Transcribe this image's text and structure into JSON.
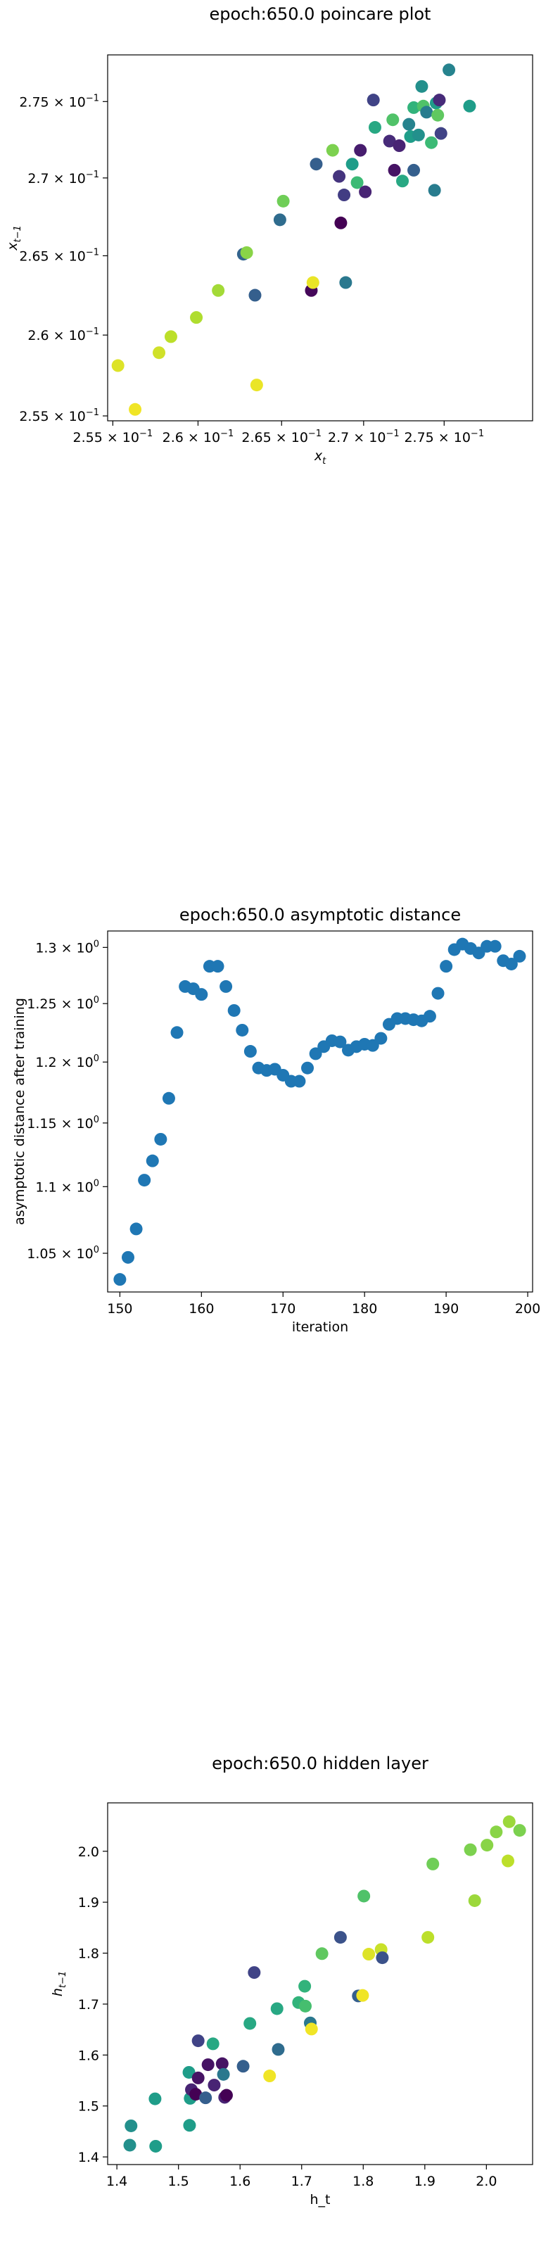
{
  "chart_data": [
    {
      "type": "scatter",
      "title": "epoch:650.0 poincare plot",
      "xlabel": "x_t",
      "ylabel": "x_{t-1}",
      "xscale": "log",
      "yscale": "log",
      "xlim": [
        0.2547,
        0.2806
      ],
      "ylim": [
        0.2547,
        0.2781
      ],
      "xticks": [
        0.255,
        0.26,
        0.265,
        0.27,
        0.275
      ],
      "yticks": [
        0.255,
        0.26,
        0.265,
        0.27,
        0.275
      ],
      "xtick_labels": [
        {
          "base": "2.55 × 10",
          "exp": "−1"
        },
        {
          "base": "2.6 × 10",
          "exp": "−1"
        },
        {
          "base": "2.65 × 10",
          "exp": "−1"
        },
        {
          "base": "2.7 × 10",
          "exp": "−1"
        },
        {
          "base": "2.75 × 10",
          "exp": "−1"
        }
      ],
      "ytick_labels": [
        {
          "base": "2.55 × 10",
          "exp": "−1"
        },
        {
          "base": "2.6 × 10",
          "exp": "−1"
        },
        {
          "base": "2.65 × 10",
          "exp": "−1"
        },
        {
          "base": "2.7 × 10",
          "exp": "−1"
        },
        {
          "base": "2.75 × 10",
          "exp": "−1"
        }
      ],
      "colormap": "viridis",
      "marker_color": "#1f77b4",
      "points": [
        {
          "x": 0.2553,
          "y": 0.2581,
          "c": 0.95
        },
        {
          "x": 0.2563,
          "y": 0.2554,
          "c": 0.98
        },
        {
          "x": 0.2577,
          "y": 0.2589,
          "c": 0.93
        },
        {
          "x": 0.2584,
          "y": 0.2599,
          "c": 0.9
        },
        {
          "x": 0.2599,
          "y": 0.2611,
          "c": 0.88
        },
        {
          "x": 0.2612,
          "y": 0.2628,
          "c": 0.86
        },
        {
          "x": 0.2627,
          "y": 0.2651,
          "c": 0.32
        },
        {
          "x": 0.2629,
          "y": 0.2652,
          "c": 0.82
        },
        {
          "x": 0.2634,
          "y": 0.2625,
          "c": 0.3
        },
        {
          "x": 0.2635,
          "y": 0.2569,
          "c": 0.97
        },
        {
          "x": 0.2649,
          "y": 0.2673,
          "c": 0.35
        },
        {
          "x": 0.2651,
          "y": 0.2685,
          "c": 0.78
        },
        {
          "x": 0.2668,
          "y": 0.2628,
          "c": 0.02
        },
        {
          "x": 0.2669,
          "y": 0.2633,
          "c": 0.97
        },
        {
          "x": 0.2671,
          "y": 0.2709,
          "c": 0.3
        },
        {
          "x": 0.2681,
          "y": 0.2718,
          "c": 0.8
        },
        {
          "x": 0.2685,
          "y": 0.2701,
          "c": 0.15
        },
        {
          "x": 0.2686,
          "y": 0.2671,
          "c": 0.0
        },
        {
          "x": 0.2688,
          "y": 0.2689,
          "c": 0.18
        },
        {
          "x": 0.2689,
          "y": 0.2633,
          "c": 0.4
        },
        {
          "x": 0.2693,
          "y": 0.2709,
          "c": 0.55
        },
        {
          "x": 0.2696,
          "y": 0.2697,
          "c": 0.68
        },
        {
          "x": 0.2698,
          "y": 0.2718,
          "c": 0.08
        },
        {
          "x": 0.2701,
          "y": 0.2691,
          "c": 0.1
        },
        {
          "x": 0.2706,
          "y": 0.2751,
          "c": 0.2
        },
        {
          "x": 0.2707,
          "y": 0.2733,
          "c": 0.6
        },
        {
          "x": 0.2716,
          "y": 0.2724,
          "c": 0.12
        },
        {
          "x": 0.2718,
          "y": 0.2738,
          "c": 0.72
        },
        {
          "x": 0.2719,
          "y": 0.2705,
          "c": 0.05
        },
        {
          "x": 0.2722,
          "y": 0.2721,
          "c": 0.1
        },
        {
          "x": 0.2724,
          "y": 0.2698,
          "c": 0.6
        },
        {
          "x": 0.2728,
          "y": 0.2735,
          "c": 0.45
        },
        {
          "x": 0.2729,
          "y": 0.2727,
          "c": 0.55
        },
        {
          "x": 0.2731,
          "y": 0.2705,
          "c": 0.3
        },
        {
          "x": 0.2731,
          "y": 0.2746,
          "c": 0.65
        },
        {
          "x": 0.2734,
          "y": 0.2728,
          "c": 0.5
        },
        {
          "x": 0.2736,
          "y": 0.276,
          "c": 0.5
        },
        {
          "x": 0.2737,
          "y": 0.2747,
          "c": 0.72
        },
        {
          "x": 0.2739,
          "y": 0.2743,
          "c": 0.42
        },
        {
          "x": 0.2742,
          "y": 0.2723,
          "c": 0.68
        },
        {
          "x": 0.2744,
          "y": 0.2692,
          "c": 0.42
        },
        {
          "x": 0.2745,
          "y": 0.2749,
          "c": 0.55
        },
        {
          "x": 0.2746,
          "y": 0.2741,
          "c": 0.75
        },
        {
          "x": 0.2747,
          "y": 0.2751,
          "c": 0.12
        },
        {
          "x": 0.2748,
          "y": 0.2729,
          "c": 0.2
        },
        {
          "x": 0.2753,
          "y": 0.2771,
          "c": 0.45
        },
        {
          "x": 0.2766,
          "y": 0.2747,
          "c": 0.55
        }
      ]
    },
    {
      "type": "scatter",
      "title": "epoch:650.0 asymptotic distance",
      "xlabel": "iteration",
      "ylabel": "asymptotic distance after training",
      "yscale": "log",
      "xlim": [
        148.5,
        200.6
      ],
      "ylim": [
        1.022,
        1.315
      ],
      "xticks": [
        150,
        160,
        170,
        180,
        190,
        200
      ],
      "yticks": [
        1.05,
        1.1,
        1.15,
        1.2,
        1.25,
        1.3
      ],
      "ytick_labels": [
        {
          "base": "1.05 × 10",
          "exp": "0"
        },
        {
          "base": "1.1 × 10",
          "exp": "0"
        },
        {
          "base": "1.15 × 10",
          "exp": "0"
        },
        {
          "base": "1.2 × 10",
          "exp": "0"
        },
        {
          "base": "1.25 × 10",
          "exp": "0"
        },
        {
          "base": "1.3 × 10",
          "exp": "0"
        }
      ],
      "marker_color": "#1f77b4",
      "x": [
        150,
        151,
        152,
        153,
        154,
        155,
        156,
        157,
        158,
        159,
        160,
        161,
        162,
        163,
        164,
        165,
        166,
        167,
        168,
        169,
        170,
        171,
        172,
        173,
        174,
        175,
        176,
        177,
        178,
        179,
        180,
        181,
        182,
        183,
        184,
        185,
        186,
        187,
        188,
        189,
        190,
        191,
        192,
        193,
        194,
        195,
        196,
        197,
        198,
        199
      ],
      "y": [
        1.031,
        1.047,
        1.068,
        1.105,
        1.12,
        1.137,
        1.17,
        1.225,
        1.265,
        1.263,
        1.258,
        1.283,
        1.283,
        1.265,
        1.244,
        1.227,
        1.209,
        1.195,
        1.193,
        1.194,
        1.189,
        1.184,
        1.184,
        1.195,
        1.207,
        1.213,
        1.218,
        1.217,
        1.21,
        1.213,
        1.215,
        1.214,
        1.22,
        1.232,
        1.237,
        1.237,
        1.236,
        1.235,
        1.239,
        1.259,
        1.283,
        1.298,
        1.303,
        1.299,
        1.295,
        1.301,
        1.301,
        1.288,
        1.285,
        1.292
      ]
    },
    {
      "type": "scatter",
      "title": "epoch:650.0 hidden layer",
      "xlabel": "h_t",
      "ylabel": "h_{t-1}",
      "xlim": [
        1.385,
        2.075
      ],
      "ylim": [
        1.385,
        2.095
      ],
      "xticks": [
        1.4,
        1.5,
        1.6,
        1.7,
        1.8,
        1.9,
        2.0
      ],
      "yticks": [
        1.4,
        1.5,
        1.6,
        1.7,
        1.8,
        1.9,
        2.0
      ],
      "xtick_labels": [
        "1.4",
        "1.5",
        "1.6",
        "1.7",
        "1.8",
        "1.9",
        "2.0"
      ],
      "ytick_labels": [
        "1.4",
        "1.5",
        "1.6",
        "1.7",
        "1.8",
        "1.9",
        "2.0"
      ],
      "colormap": "viridis",
      "points": [
        {
          "x": 1.423,
          "y": 1.461,
          "c": 0.5
        },
        {
          "x": 1.421,
          "y": 1.423,
          "c": 0.5
        },
        {
          "x": 1.462,
          "y": 1.514,
          "c": 0.55
        },
        {
          "x": 1.463,
          "y": 1.421,
          "c": 0.55
        },
        {
          "x": 1.517,
          "y": 1.566,
          "c": 0.55
        },
        {
          "x": 1.519,
          "y": 1.515,
          "c": 0.55
        },
        {
          "x": 1.518,
          "y": 1.462,
          "c": 0.55
        },
        {
          "x": 1.521,
          "y": 1.532,
          "c": 0.1
        },
        {
          "x": 1.528,
          "y": 1.523,
          "c": 0.0
        },
        {
          "x": 1.532,
          "y": 1.628,
          "c": 0.2
        },
        {
          "x": 1.532,
          "y": 1.555,
          "c": 0.05
        },
        {
          "x": 1.544,
          "y": 1.516,
          "c": 0.3
        },
        {
          "x": 1.548,
          "y": 1.581,
          "c": 0.05
        },
        {
          "x": 1.556,
          "y": 1.622,
          "c": 0.6
        },
        {
          "x": 1.558,
          "y": 1.541,
          "c": 0.1
        },
        {
          "x": 1.571,
          "y": 1.583,
          "c": 0.05
        },
        {
          "x": 1.573,
          "y": 1.562,
          "c": 0.4
        },
        {
          "x": 1.575,
          "y": 1.517,
          "c": 0.1
        },
        {
          "x": 1.578,
          "y": 1.521,
          "c": 0.0
        },
        {
          "x": 1.605,
          "y": 1.578,
          "c": 0.3
        },
        {
          "x": 1.616,
          "y": 1.662,
          "c": 0.6
        },
        {
          "x": 1.623,
          "y": 1.762,
          "c": 0.2
        },
        {
          "x": 1.648,
          "y": 1.559,
          "c": 0.98
        },
        {
          "x": 1.66,
          "y": 1.691,
          "c": 0.6
        },
        {
          "x": 1.662,
          "y": 1.611,
          "c": 0.35
        },
        {
          "x": 1.695,
          "y": 1.703,
          "c": 0.65
        },
        {
          "x": 1.705,
          "y": 1.735,
          "c": 0.65
        },
        {
          "x": 1.706,
          "y": 1.696,
          "c": 0.7
        },
        {
          "x": 1.714,
          "y": 1.663,
          "c": 0.4
        },
        {
          "x": 1.716,
          "y": 1.651,
          "c": 0.98
        },
        {
          "x": 1.733,
          "y": 1.799,
          "c": 0.75
        },
        {
          "x": 1.763,
          "y": 1.831,
          "c": 0.25
        },
        {
          "x": 1.792,
          "y": 1.716,
          "c": 0.3
        },
        {
          "x": 1.799,
          "y": 1.717,
          "c": 0.98
        },
        {
          "x": 1.801,
          "y": 1.912,
          "c": 0.72
        },
        {
          "x": 1.809,
          "y": 1.798,
          "c": 0.95
        },
        {
          "x": 1.829,
          "y": 1.807,
          "c": 0.92
        },
        {
          "x": 1.831,
          "y": 1.791,
          "c": 0.25
        },
        {
          "x": 1.905,
          "y": 1.831,
          "c": 0.9
        },
        {
          "x": 1.913,
          "y": 1.975,
          "c": 0.78
        },
        {
          "x": 1.974,
          "y": 2.003,
          "c": 0.8
        },
        {
          "x": 1.981,
          "y": 1.903,
          "c": 0.85
        },
        {
          "x": 2.001,
          "y": 2.012,
          "c": 0.82
        },
        {
          "x": 2.016,
          "y": 2.038,
          "c": 0.82
        },
        {
          "x": 2.035,
          "y": 1.981,
          "c": 0.9
        },
        {
          "x": 2.037,
          "y": 2.058,
          "c": 0.85
        },
        {
          "x": 2.054,
          "y": 2.041,
          "c": 0.8
        }
      ]
    }
  ]
}
